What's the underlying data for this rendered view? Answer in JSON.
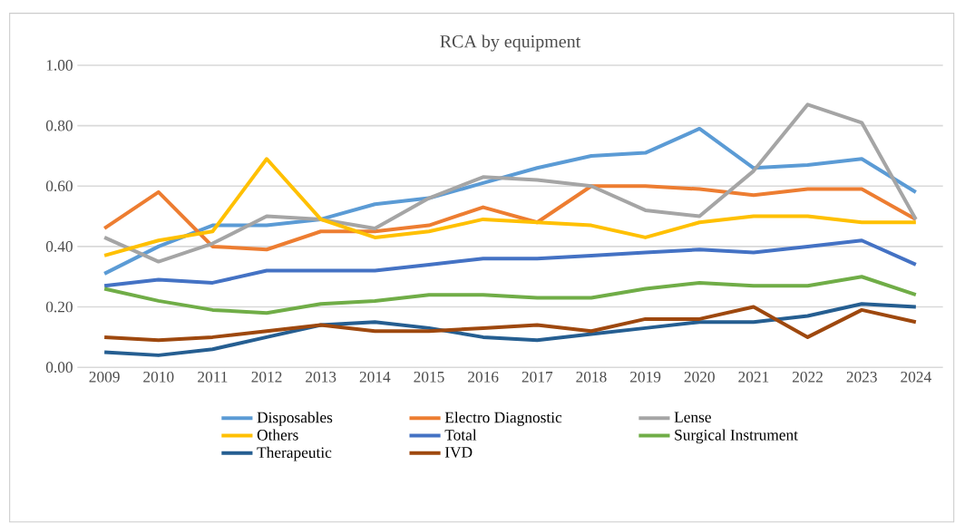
{
  "chart_data": {
    "type": "line",
    "title": "RCA by equipment",
    "categories": [
      "2009",
      "2010",
      "2011",
      "2012",
      "2013",
      "2014",
      "2015",
      "2016",
      "2017",
      "2018",
      "2019",
      "2020",
      "2021",
      "2022",
      "2023",
      "2024"
    ],
    "series": [
      {
        "name": "Disposables",
        "color": "#5b9bd5",
        "values": [
          0.31,
          0.4,
          0.47,
          0.47,
          0.49,
          0.54,
          0.56,
          0.61,
          0.66,
          0.7,
          0.71,
          0.79,
          0.66,
          0.67,
          0.69,
          0.58
        ]
      },
      {
        "name": "Electro Diagnostic",
        "color": "#ed7d31",
        "values": [
          0.46,
          0.58,
          0.4,
          0.39,
          0.45,
          0.45,
          0.47,
          0.53,
          0.48,
          0.6,
          0.6,
          0.59,
          0.57,
          0.59,
          0.59,
          0.49
        ]
      },
      {
        "name": "Lense",
        "color": "#a5a5a5",
        "values": [
          0.43,
          0.35,
          0.41,
          0.5,
          0.49,
          0.46,
          0.56,
          0.63,
          0.62,
          0.6,
          0.52,
          0.5,
          0.65,
          0.87,
          0.81,
          0.49
        ]
      },
      {
        "name": "Others",
        "color": "#ffc000",
        "values": [
          0.37,
          0.42,
          0.45,
          0.69,
          0.49,
          0.43,
          0.45,
          0.49,
          0.48,
          0.47,
          0.43,
          0.48,
          0.5,
          0.5,
          0.48,
          0.48
        ]
      },
      {
        "name": "Total",
        "color": "#4472c4",
        "values": [
          0.27,
          0.29,
          0.28,
          0.32,
          0.32,
          0.32,
          0.34,
          0.36,
          0.36,
          0.37,
          0.38,
          0.39,
          0.38,
          0.4,
          0.42,
          0.34
        ]
      },
      {
        "name": "Surgical Instrument",
        "color": "#70ad47",
        "values": [
          0.26,
          0.22,
          0.19,
          0.18,
          0.21,
          0.22,
          0.24,
          0.24,
          0.23,
          0.23,
          0.26,
          0.28,
          0.27,
          0.27,
          0.3,
          0.24
        ]
      },
      {
        "name": "Therapeutic",
        "color": "#255e91",
        "values": [
          0.05,
          0.04,
          0.06,
          0.1,
          0.14,
          0.15,
          0.13,
          0.1,
          0.09,
          0.11,
          0.13,
          0.15,
          0.15,
          0.17,
          0.21,
          0.2
        ]
      },
      {
        "name": "IVD",
        "color": "#9e480e",
        "values": [
          0.1,
          0.09,
          0.1,
          0.12,
          0.14,
          0.12,
          0.12,
          0.13,
          0.14,
          0.12,
          0.16,
          0.16,
          0.2,
          0.1,
          0.19,
          0.15
        ]
      }
    ],
    "ylim": [
      0,
      1.0
    ],
    "yticks": [
      {
        "value": 0,
        "label": "0.00"
      },
      {
        "value": 0.2,
        "label": "0.20"
      },
      {
        "value": 0.4,
        "label": "0.40"
      },
      {
        "value": 0.6,
        "label": "0.60"
      },
      {
        "value": 0.8,
        "label": "0.80"
      },
      {
        "value": 1.0,
        "label": "1.00"
      }
    ],
    "grid": "y",
    "legend": "bottom",
    "marker": "none",
    "line_style": "solid"
  }
}
